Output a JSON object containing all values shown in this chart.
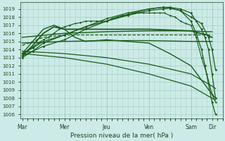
{
  "background_color": "#cceae7",
  "grid_color": "#aad4cc",
  "line_color": "#1a5c1a",
  "xlabel": "Pression niveau de la mer( hPa )",
  "xtick_labels": [
    "Mar",
    "Mer",
    "Jeu",
    "Ven",
    "Sam",
    "Dir"
  ],
  "ylim": [
    1005.5,
    1019.8
  ],
  "xlim": [
    -2,
    228
  ],
  "lines": [
    {
      "x": [
        0,
        48,
        96,
        144,
        192,
        210,
        216
      ],
      "y": [
        1015.5,
        1016.0,
        1016.2,
        1016.3,
        1016.3,
        1016.2,
        1016.2
      ],
      "style": "solid",
      "lw": 1.0,
      "marker": null,
      "alpha": 1.0
    },
    {
      "x": [
        0,
        48,
        96,
        144,
        192,
        210,
        216
      ],
      "y": [
        1014.8,
        1015.0,
        1015.1,
        1015.1,
        1015.0,
        1015.0,
        1015.0
      ],
      "style": "solid",
      "lw": 1.0,
      "marker": null,
      "alpha": 1.0
    },
    {
      "x": [
        0,
        12,
        24,
        48,
        72,
        96,
        120,
        144,
        160,
        168,
        180,
        192,
        204,
        212,
        216,
        220
      ],
      "y": [
        1013.2,
        1013.8,
        1014.4,
        1015.2,
        1016.5,
        1017.5,
        1018.3,
        1019.0,
        1019.2,
        1019.1,
        1018.8,
        1018.0,
        1017.2,
        1015.5,
        1014.0,
        1011.5
      ],
      "style": "solid",
      "lw": 0.9,
      "marker": "D",
      "ms": 1.5,
      "alpha": 1.0
    },
    {
      "x": [
        0,
        12,
        24,
        48,
        72,
        96,
        120,
        144,
        160,
        168,
        180,
        192,
        198,
        204,
        208,
        212,
        216,
        220
      ],
      "y": [
        1013.5,
        1014.2,
        1015.0,
        1015.8,
        1016.8,
        1017.8,
        1018.5,
        1019.0,
        1019.2,
        1019.2,
        1019.0,
        1018.5,
        1017.5,
        1016.5,
        1015.5,
        1014.0,
        1011.0,
        1008.0
      ],
      "style": "solid",
      "lw": 0.9,
      "marker": "D",
      "ms": 1.5,
      "alpha": 1.0
    },
    {
      "x": [
        0,
        12,
        24,
        48,
        72,
        96,
        120,
        144,
        160,
        168,
        180,
        192,
        198,
        204,
        208,
        216,
        220
      ],
      "y": [
        1013.0,
        1013.8,
        1014.8,
        1015.8,
        1016.8,
        1017.5,
        1018.2,
        1018.8,
        1019.0,
        1019.1,
        1018.8,
        1017.5,
        1016.0,
        1014.0,
        1012.0,
        1007.5,
        1006.0
      ],
      "style": "solid",
      "lw": 0.9,
      "marker": "D",
      "ms": 1.5,
      "alpha": 1.0
    },
    {
      "x": [
        0,
        12,
        24,
        36,
        48,
        60,
        72,
        96,
        120,
        144,
        168,
        192,
        216,
        220
      ],
      "y": [
        1013.5,
        1015.0,
        1016.5,
        1017.0,
        1016.5,
        1015.5,
        1015.0,
        1015.2,
        1015.0,
        1014.8,
        1013.5,
        1012.0,
        1008.5,
        1008.0
      ],
      "style": "solid",
      "lw": 1.0,
      "marker": null,
      "alpha": 1.0
    },
    {
      "x": [
        0,
        48,
        96,
        144,
        192,
        216,
        220
      ],
      "y": [
        1013.8,
        1013.5,
        1013.0,
        1012.2,
        1011.0,
        1009.5,
        1009.2
      ],
      "style": "solid",
      "lw": 0.9,
      "marker": null,
      "alpha": 1.0
    },
    {
      "x": [
        0,
        48,
        96,
        144,
        192,
        216,
        220
      ],
      "y": [
        1013.5,
        1013.0,
        1012.2,
        1011.0,
        1009.5,
        1008.0,
        1007.8
      ],
      "style": "solid",
      "lw": 0.9,
      "marker": null,
      "alpha": 1.0
    },
    {
      "x": [
        0,
        24,
        48,
        96,
        144,
        192,
        216
      ],
      "y": [
        1014.5,
        1015.5,
        1015.8,
        1015.8,
        1015.8,
        1015.8,
        1015.8
      ],
      "style": "dashed",
      "lw": 0.9,
      "marker": null,
      "alpha": 1.0
    },
    {
      "x": [
        0,
        12,
        24,
        36,
        48,
        96,
        144,
        192,
        210,
        216
      ],
      "y": [
        1013.2,
        1014.5,
        1016.0,
        1016.8,
        1016.5,
        1016.5,
        1016.5,
        1016.3,
        1015.8,
        1015.5
      ],
      "style": "solid",
      "lw": 1.3,
      "marker": null,
      "alpha": 1.0
    },
    {
      "x": [
        0,
        6,
        12,
        18,
        24,
        30,
        36,
        42,
        48,
        54,
        60,
        66,
        72,
        78,
        84,
        90,
        96,
        102,
        108,
        114,
        120,
        126,
        132,
        138,
        144,
        150,
        156,
        162,
        168,
        174,
        180,
        186,
        192,
        198,
        204,
        210,
        216,
        220
      ],
      "y": [
        1013.5,
        1013.8,
        1014.3,
        1014.8,
        1015.2,
        1015.5,
        1016.0,
        1016.5,
        1016.8,
        1017.0,
        1017.2,
        1017.3,
        1017.5,
        1017.5,
        1017.5,
        1017.5,
        1017.5,
        1017.8,
        1018.0,
        1018.2,
        1018.3,
        1018.5,
        1018.5,
        1018.5,
        1018.5,
        1018.5,
        1018.5,
        1018.5,
        1018.2,
        1018.0,
        1017.5,
        1017.2,
        1017.0,
        1015.5,
        1013.0,
        1011.0,
        1008.5,
        1007.5
      ],
      "style": "solid",
      "lw": 0.8,
      "marker": "D",
      "ms": 1.2,
      "alpha": 1.0
    }
  ],
  "vlines_x": [
    48,
    96,
    144,
    192,
    216
  ],
  "xtick_positions": [
    0,
    48,
    96,
    144,
    192,
    216
  ],
  "ylabel_ticks": [
    1006,
    1007,
    1008,
    1009,
    1010,
    1011,
    1012,
    1013,
    1014,
    1015,
    1016,
    1017,
    1018,
    1019
  ],
  "figsize": [
    3.2,
    2.0
  ],
  "dpi": 100
}
